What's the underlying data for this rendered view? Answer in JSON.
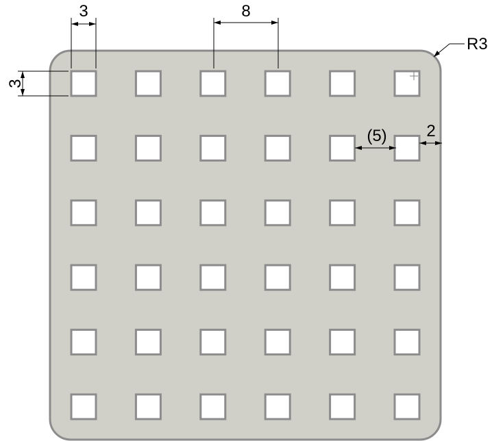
{
  "drawing": {
    "dimensions": {
      "hole_width": "3",
      "hole_pitch": "8",
      "hole_height": "3",
      "hole_gap": "(5)",
      "edge_margin": "2",
      "corner_radius": "R3"
    },
    "hole_grid": {
      "rows": 6,
      "columns": 6
    },
    "colors": {
      "plate_fill": "#d0d0c8",
      "outline": "#8c8c8c",
      "hole_fill": "#ffffff",
      "dimension_lines": "#000000"
    }
  }
}
